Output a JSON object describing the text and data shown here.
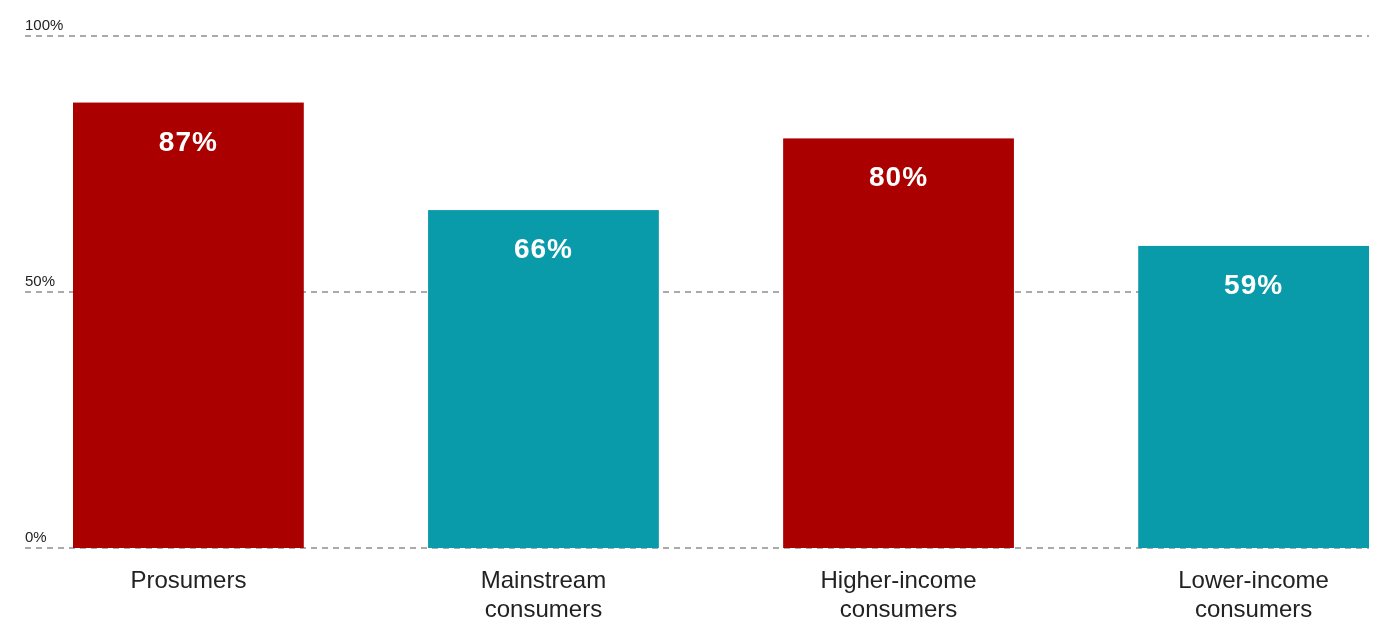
{
  "chart_data": {
    "type": "bar",
    "categories": [
      "Prosumers",
      "Mainstream consumers",
      "Higher-income consumers",
      "Lower-income consumers"
    ],
    "values": [
      87,
      66,
      80,
      59
    ],
    "colors": [
      "#ab0000",
      "#0a9bab",
      "#ab0000",
      "#0a9bab"
    ],
    "value_labels": [
      "87%",
      "66%",
      "80%",
      "59%"
    ],
    "ylim": [
      0,
      100
    ],
    "yticks": [
      {
        "value": 0,
        "label": "0%"
      },
      {
        "value": 50,
        "label": "50%"
      },
      {
        "value": 100,
        "label": "100%"
      }
    ],
    "grid": "y"
  }
}
